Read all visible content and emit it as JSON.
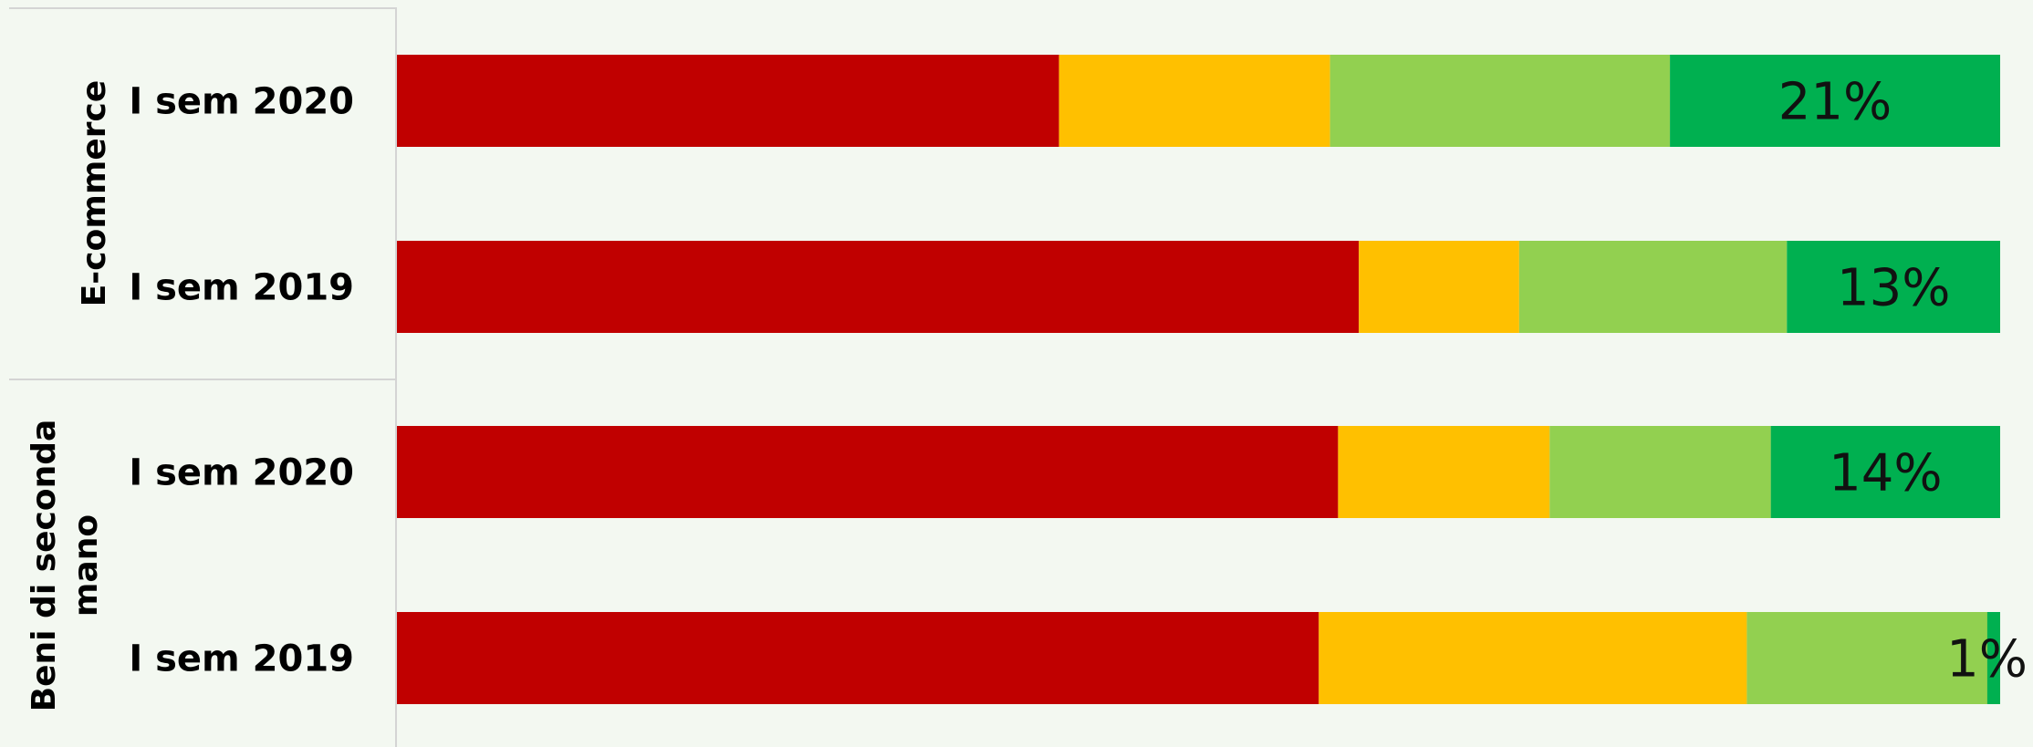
{
  "chart_data": {
    "type": "bar",
    "orientation": "horizontal",
    "stacked": "percent",
    "title": "",
    "groups": [
      {
        "label": "E-commerce",
        "categories": [
          "I sem 2020",
          "I sem 2019"
        ]
      },
      {
        "label": "Beni di seconda mano",
        "categories": [
          "I sem 2020",
          "I sem 2019"
        ]
      }
    ],
    "categories": [
      "I sem 2020",
      "I sem 2019",
      "I sem 2020",
      "I sem 2019"
    ],
    "series": [
      {
        "values": [
          41.3,
          60.0,
          58.7,
          57.5
        ]
      },
      {
        "values": [
          16.9,
          10.0,
          13.2,
          26.7
        ]
      },
      {
        "values": [
          21.2,
          16.7,
          13.8,
          15.0
        ]
      },
      {
        "values": [
          20.6,
          13.3,
          14.3,
          0.8
        ]
      }
    ],
    "data_labels": [
      "21%",
      "13%",
      "14%",
      "1%"
    ],
    "colors": [
      "#c00000",
      "#ffc000",
      "#92d050",
      "#00b050"
    ],
    "xlim": [
      0,
      100
    ],
    "grid": false,
    "legend": "none"
  }
}
